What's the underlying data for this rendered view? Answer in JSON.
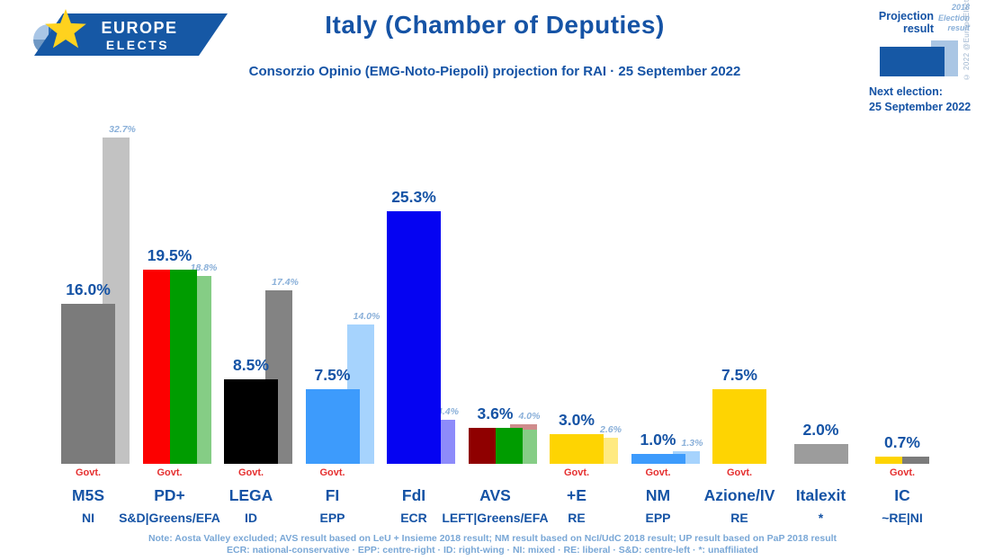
{
  "header": {
    "logo_line1": "EUROPE",
    "logo_line2": "ELECTS",
    "title": "Italy (Chamber of Deputies)",
    "subtitle": "Consorzio Opinio (EMG-Noto-Piepoli) projection for RAI · 25 September 2022"
  },
  "legend": {
    "projection_label": "Projection result",
    "election_label": "2018 Election result",
    "copyright": "© 2022 @EuropeElects",
    "next_election_label": "Next election:",
    "next_election_date": "25 September 2022"
  },
  "colors": {
    "europe_blue": "#1658a5",
    "legend_light": "#aac6e4",
    "text_blue": "#1553a5",
    "faded_blue": "#8ab0d9",
    "note_blue": "#79a7d6",
    "govt_red": "#e53030"
  },
  "chart_data": {
    "type": "bar",
    "unit": "%",
    "ylim": [
      0,
      35
    ],
    "grid": false,
    "govt_label": "Govt.",
    "series_names": [
      "Projection result",
      "2018 Election result"
    ],
    "parties": [
      {
        "party": "M5S",
        "group": "NI",
        "projection": 16.0,
        "election2018": 32.7,
        "govt": true,
        "colors": [
          "#7b7b7b"
        ],
        "colors2018": [
          "#c2c2c2"
        ]
      },
      {
        "party": "PD+",
        "group": "S&D|Greens/EFA",
        "projection": 19.5,
        "election2018": 18.8,
        "govt": true,
        "colors": [
          "#fc0000",
          "#009c00"
        ],
        "colors2018": [
          "#85cd85"
        ]
      },
      {
        "party": "LEGA",
        "group": "ID",
        "projection": 8.5,
        "election2018": 17.4,
        "govt": true,
        "colors": [
          "#000000"
        ],
        "colors2018": [
          "#838383"
        ]
      },
      {
        "party": "FI",
        "group": "EPP",
        "projection": 7.5,
        "election2018": 14.0,
        "govt": true,
        "colors": [
          "#3d9bfc"
        ],
        "colors2018": [
          "#a6d3fd"
        ]
      },
      {
        "party": "FdI",
        "group": "ECR",
        "projection": 25.3,
        "election2018": 4.4,
        "govt": false,
        "colors": [
          "#0503f2"
        ],
        "colors2018": [
          "#8d8bfa"
        ]
      },
      {
        "party": "AVS",
        "group": "LEFT|Greens/EFA",
        "projection": 3.6,
        "election2018": 4.0,
        "govt": false,
        "colors": [
          "#8f0000",
          "#009c00"
        ],
        "segments2018": [
          {
            "value": 0.6,
            "color": "#cf8c8c"
          },
          {
            "value": 3.4,
            "color": "#86cd86"
          }
        ]
      },
      {
        "party": "+E",
        "group": "RE",
        "projection": 3.0,
        "election2018": 2.6,
        "govt": true,
        "colors": [
          "#fed402"
        ],
        "colors2018": [
          "#ffea81"
        ]
      },
      {
        "party": "NM",
        "group": "EPP",
        "projection": 1.0,
        "election2018": 1.3,
        "govt": true,
        "colors": [
          "#3d9bfc"
        ],
        "colors2018": [
          "#a6d3fd"
        ]
      },
      {
        "party": "Azione/IV",
        "group": "RE",
        "projection": 7.5,
        "election2018": null,
        "govt": true,
        "colors": [
          "#fed402"
        ]
      },
      {
        "party": "Italexit",
        "group": "*",
        "projection": 2.0,
        "election2018": null,
        "govt": false,
        "colors": [
          "#9c9c9c"
        ]
      },
      {
        "party": "IC",
        "group": "~RE|NI",
        "projection": 0.7,
        "election2018": null,
        "govt": true,
        "colors": [
          "#fed402",
          "#7b7b7b"
        ]
      }
    ]
  },
  "footer": {
    "note_line1": "Note: Aosta Valley excluded; AVS result based on LeU + Insieme 2018 result; NM result based on NcI/UdC 2018 result; UP result based on PaP 2018 result",
    "note_line2": "ECR: national-conservative · EPP: centre-right · ID: right-wing · NI: mixed · RE: liberal · S&D: centre-left · *: unaffiliated"
  }
}
